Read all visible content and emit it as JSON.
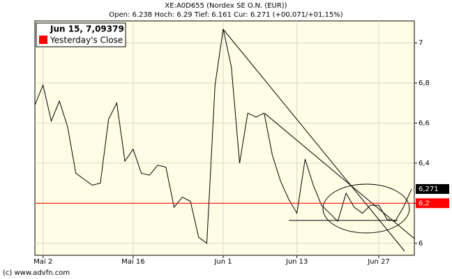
{
  "chart_data": {
    "type": "line",
    "title": "XE:A0D655 (Nordex SE O.N. (EUR))",
    "subtitle": "Open: 6.238 Hoch: 6.29 Tief: 6.161 Cur: 6.271 (+00,071/+01,15%)",
    "legend_title": "Jun 15, 7,09379",
    "footer": "(c) www.advfn.com",
    "categories": [
      null,
      "Mai 2",
      null,
      null,
      null,
      null,
      null,
      null,
      null,
      null,
      null,
      null,
      "Mai 16",
      null,
      null,
      null,
      null,
      null,
      null,
      null,
      null,
      null,
      null,
      "Jun 1",
      null,
      null,
      null,
      null,
      null,
      null,
      null,
      null,
      "Jun 13",
      null,
      null,
      null,
      null,
      null,
      null,
      null,
      null,
      null,
      "Jun 27",
      null,
      null,
      null,
      null
    ],
    "series": [
      {
        "name": "XE:A0D655",
        "color": "#000000",
        "values": [
          6.69,
          6.79,
          6.61,
          6.71,
          6.58,
          6.35,
          6.32,
          6.29,
          6.3,
          6.62,
          6.7,
          6.41,
          6.47,
          6.35,
          6.34,
          6.39,
          6.38,
          6.18,
          6.23,
          6.21,
          6.03,
          6.0,
          6.79,
          7.07,
          6.88,
          6.4,
          6.65,
          6.63,
          6.65,
          6.44,
          6.31,
          6.22,
          6.15,
          6.42,
          6.29,
          6.19,
          6.15,
          6.11,
          6.25,
          6.18,
          6.15,
          6.19,
          6.19,
          6.12,
          6.11,
          6.18,
          6.27
        ]
      }
    ],
    "reference_line": {
      "name": "Yesterday's Close",
      "value": 6.2,
      "label": "6,2",
      "color": "#ff0000"
    },
    "last_value": {
      "value": 6.271,
      "label": "6,271"
    },
    "ylim": [
      5.94,
      7.11
    ],
    "yticks": [
      6,
      {
        "value": 6.2,
        "label": "6,2"
      },
      {
        "value": 6.4,
        "label": "6,4"
      },
      {
        "value": 6.6,
        "label": "6,6"
      },
      {
        "value": 6.8,
        "label": "6,8"
      },
      7
    ],
    "grid": true
  }
}
